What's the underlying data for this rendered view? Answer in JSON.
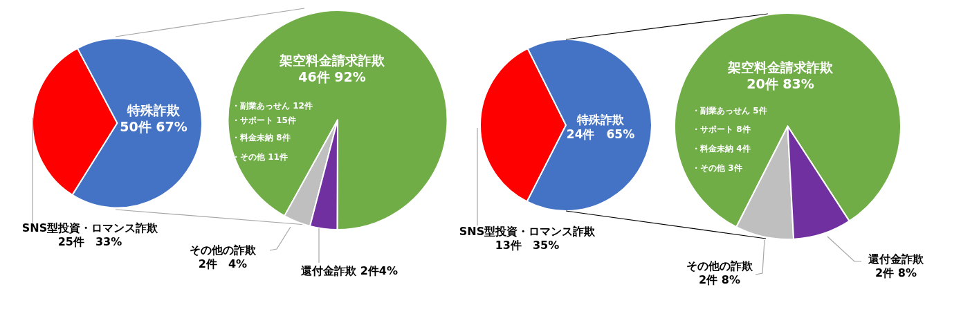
{
  "chart_data": [
    {
      "type": "pie",
      "categories": [
        "SNS型投資・ロマンス詐欺",
        "特殊詐欺"
      ],
      "values": [
        25,
        50
      ],
      "colors": [
        "#ff0000",
        "#4472c4"
      ],
      "value_labels": [
        "25件　33%",
        "50件 67%"
      ],
      "legend": false
    },
    {
      "type": "pie",
      "categories": [
        "架空料金請求詐欺",
        "その他の詐欺",
        "還付金詐欺"
      ],
      "values": [
        46,
        2,
        2
      ],
      "colors": [
        "#70ad47",
        "#bfbfbf",
        "#7030a0"
      ],
      "value_labels": [
        "46件 92%",
        "2件　4%",
        "2件4%"
      ],
      "legend": false,
      "annotations": [
        "・副業あっせん 12件",
        "・サポート 15件",
        "・料金未納 8件",
        "・その他 11件"
      ]
    },
    {
      "type": "pie",
      "categories": [
        "SNS型投資・ロマンス詐欺",
        "特殊詐欺"
      ],
      "values": [
        13,
        24
      ],
      "colors": [
        "#ff0000",
        "#4472c4"
      ],
      "value_labels": [
        "13件　35%",
        "24件　65%"
      ],
      "legend": false
    },
    {
      "type": "pie",
      "categories": [
        "架空料金請求詐欺",
        "その他の詐欺",
        "還付金詐欺"
      ],
      "values": [
        20,
        2,
        2
      ],
      "colors": [
        "#70ad47",
        "#bfbfbf",
        "#7030a0"
      ],
      "value_labels": [
        "20件 83%",
        "2件 8%",
        "2件 8%"
      ],
      "legend": false,
      "annotations": [
        "・副業あっせん 5件",
        "・サポート 8件",
        "・料金未納 4件",
        "・その他 3件"
      ]
    }
  ]
}
